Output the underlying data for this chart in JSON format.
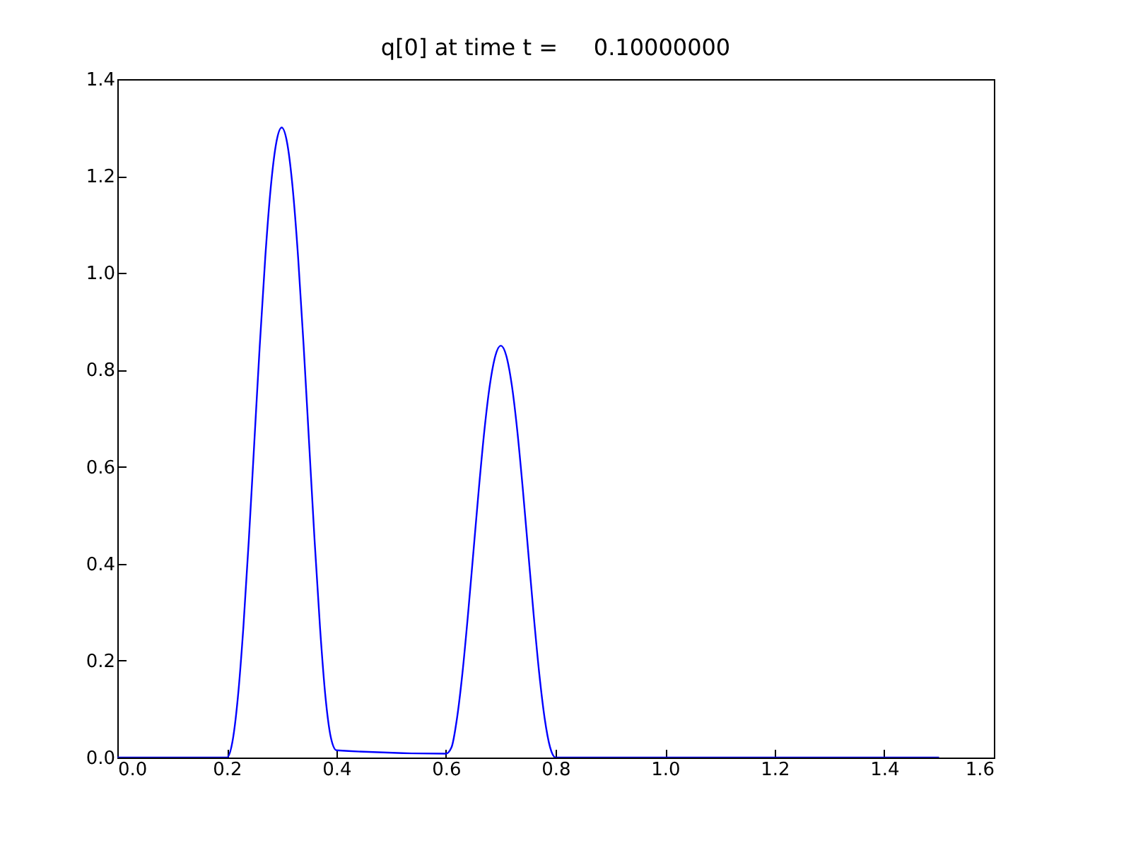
{
  "chart_data": {
    "type": "line",
    "title": "q[0] at time t =     0.10000000",
    "x": [
      0,
      0.2,
      0.21,
      0.22,
      0.23,
      0.24,
      0.25,
      0.26,
      0.27,
      0.28,
      0.29,
      0.3,
      0.31,
      0.32,
      0.33,
      0.34,
      0.35,
      0.36,
      0.37,
      0.38,
      0.39,
      0.4,
      0.6,
      0.61,
      0.62,
      0.63,
      0.64,
      0.65,
      0.66,
      0.67,
      0.68,
      0.69,
      0.7,
      0.71,
      0.72,
      0.73,
      0.74,
      0.75,
      0.76,
      0.77,
      0.78,
      0.79,
      0.8,
      1.5
    ],
    "series": [
      {
        "color": "#0000ff",
        "values": [
          0,
          0,
          0.032,
          0.124,
          0.268,
          0.449,
          0.65,
          0.851,
          1.032,
          1.176,
          1.268,
          1.3,
          1.268,
          1.176,
          1.032,
          0.851,
          0.65,
          0.449,
          0.268,
          0.124,
          0.04,
          0.015,
          0.008,
          0.021,
          0.081,
          0.175,
          0.294,
          0.425,
          0.556,
          0.675,
          0.769,
          0.829,
          0.85,
          0.829,
          0.769,
          0.675,
          0.556,
          0.425,
          0.294,
          0.175,
          0.081,
          0.021,
          0,
          0
        ]
      }
    ],
    "xlim": [
      0,
      1.6
    ],
    "xticks": [
      {
        "value": 0,
        "label": "0.0"
      },
      0.2,
      0.4,
      0.6,
      0.8,
      {
        "value": 1,
        "label": "1.0"
      },
      1.2,
      1.4,
      1.6
    ],
    "ylim": [
      0,
      1.4
    ],
    "yticks": [
      {
        "value": 0,
        "label": "0.0"
      },
      0.2,
      0.4,
      0.6,
      0.8,
      {
        "value": 1,
        "label": "1.0"
      },
      1.2,
      1.4
    ],
    "grid": false,
    "legend": false,
    "marker": "none",
    "line_style": "solid"
  }
}
